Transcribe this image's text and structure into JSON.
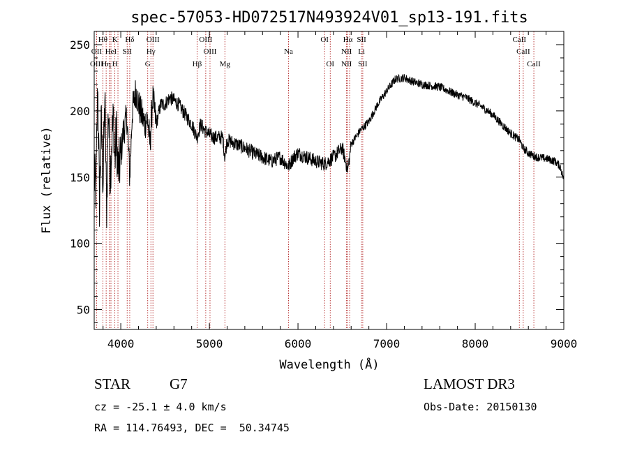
{
  "chart_data": {
    "type": "line",
    "title": "spec-57053-HD072517N493924V01_sp13-191.fits",
    "xlabel": "Wavelength (Å)",
    "ylabel": "Flux (relative)",
    "xlim": [
      3700,
      9000
    ],
    "ylim": [
      35,
      260
    ],
    "xticks": [
      4000,
      5000,
      6000,
      7000,
      8000,
      9000
    ],
    "yticks": [
      50,
      100,
      150,
      200,
      250
    ],
    "spectrum_anchors": {
      "wavelength": [
        3700,
        3720,
        3740,
        3760,
        3780,
        3800,
        3820,
        3840,
        3860,
        3880,
        3900,
        3920,
        3933,
        3950,
        3968,
        3990,
        4030,
        4070,
        4101,
        4130,
        4170,
        4220,
        4270,
        4300,
        4330,
        4360,
        4400,
        4450,
        4500,
        4550,
        4600,
        4650,
        4700,
        4750,
        4800,
        4861,
        4900,
        4950,
        5000,
        5050,
        5100,
        5150,
        5175,
        5200,
        5300,
        5400,
        5500,
        5600,
        5700,
        5800,
        5893,
        5950,
        6000,
        6100,
        6200,
        6300,
        6400,
        6500,
        6563,
        6600,
        6700,
        6800,
        6900,
        7000,
        7100,
        7200,
        7300,
        7400,
        7500,
        7600,
        7700,
        7800,
        7900,
        8000,
        8100,
        8200,
        8300,
        8400,
        8500,
        8542,
        8600,
        8662,
        8700,
        8800,
        8900,
        8960,
        9000
      ],
      "flux": [
        150,
        140,
        220,
        130,
        190,
        145,
        210,
        125,
        205,
        150,
        180,
        195,
        160,
        185,
        155,
        160,
        185,
        195,
        150,
        200,
        215,
        200,
        190,
        195,
        175,
        210,
        190,
        205,
        205,
        210,
        208,
        205,
        200,
        195,
        190,
        180,
        190,
        185,
        182,
        180,
        180,
        180,
        165,
        178,
        175,
        172,
        168,
        165,
        162,
        165,
        158,
        165,
        168,
        165,
        162,
        160,
        165,
        172,
        155,
        175,
        185,
        192,
        205,
        215,
        224,
        225,
        222,
        220,
        219,
        218,
        215,
        212,
        210,
        206,
        202,
        197,
        190,
        183,
        178,
        172,
        168,
        166,
        165,
        164,
        162,
        158,
        148
      ]
    },
    "line_markers": [
      {
        "wl": 3727,
        "row1": "",
        "row2": "OII",
        "row3": "OIII"
      },
      {
        "wl": 3798,
        "row1": "Hθ",
        "row2": "",
        "row3": ""
      },
      {
        "wl": 3835,
        "row1": "",
        "row2": "",
        "row3": "Hη"
      },
      {
        "wl": 3869,
        "row1": "",
        "row2": "",
        "row3": ""
      },
      {
        "wl": 3889,
        "row1": "",
        "row2": "HeI",
        "row3": ""
      },
      {
        "wl": 3933,
        "row1": "K",
        "row2": "",
        "row3": "H"
      },
      {
        "wl": 3968,
        "row1": "",
        "row2": "",
        "row3": ""
      },
      {
        "wl": 4072,
        "row1": "",
        "row2": "SII",
        "row3": ""
      },
      {
        "wl": 4101,
        "row1": "Hδ",
        "row2": "",
        "row3": ""
      },
      {
        "wl": 4304,
        "row1": "",
        "row2": "",
        "row3": "G"
      },
      {
        "wl": 4340,
        "row1": "",
        "row2": "Hγ",
        "row3": ""
      },
      {
        "wl": 4363,
        "row1": "OIII",
        "row2": "",
        "row3": ""
      },
      {
        "wl": 4861,
        "row1": "",
        "row2": "",
        "row3": "Hβ"
      },
      {
        "wl": 4959,
        "row1": "OIII",
        "row2": "",
        "row3": ""
      },
      {
        "wl": 5007,
        "row1": "",
        "row2": "OIII",
        "row3": ""
      },
      {
        "wl": 5175,
        "row1": "",
        "row2": "",
        "row3": "Mg"
      },
      {
        "wl": 5893,
        "row1": "",
        "row2": "Na",
        "row3": ""
      },
      {
        "wl": 6300,
        "row1": "OI",
        "row2": "",
        "row3": ""
      },
      {
        "wl": 6364,
        "row1": "",
        "row2": "",
        "row3": "OI"
      },
      {
        "wl": 6548,
        "row1": "",
        "row2": "NII",
        "row3": "NII"
      },
      {
        "wl": 6563,
        "row1": "Hα",
        "row2": "",
        "row3": ""
      },
      {
        "wl": 6583,
        "row1": "",
        "row2": "",
        "row3": ""
      },
      {
        "wl": 6717,
        "row1": "SII",
        "row2": "Li",
        "row3": ""
      },
      {
        "wl": 6731,
        "row1": "",
        "row2": "",
        "row3": "SII"
      },
      {
        "wl": 8498,
        "row1": "CaII",
        "row2": "",
        "row3": ""
      },
      {
        "wl": 8542,
        "row1": "",
        "row2": "CaII",
        "row3": ""
      },
      {
        "wl": 8662,
        "row1": "",
        "row2": "",
        "row3": "CaII"
      }
    ],
    "series_color": "#000000",
    "marker_color": "#b22222"
  },
  "footer": {
    "object_class": "STAR",
    "subclass": "G7",
    "survey": "LAMOST DR3",
    "cz": "cz = -25.1 ± 4.0 km/s",
    "obs_date": "Obs-Date: 20150130",
    "coords": "RA = 114.76493, DEC =  50.34745"
  }
}
